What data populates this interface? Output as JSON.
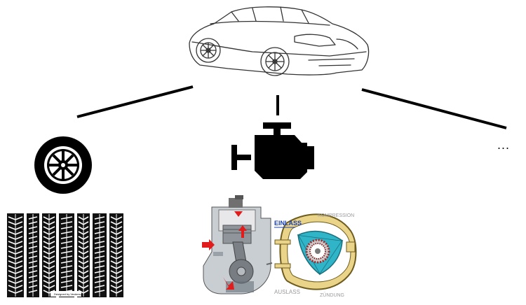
{
  "hierarchy": {
    "root": {
      "name": "car-sketch-icon"
    },
    "branches": [
      {
        "name": "tire-branch"
      },
      {
        "name": "engine-branch"
      },
      {
        "name": "more-branch"
      }
    ],
    "more_label": "...",
    "tread_credit": "Designed by Vecteezy",
    "rotary_labels": {
      "intake": "EINLASS",
      "compression": "KOMPRESSION",
      "exhaust": "AUSLASS",
      "ignition": "ZÜNDUNG",
      "rotor_marker": "A"
    }
  },
  "colors": {
    "line": "#000000",
    "icon": "#000000",
    "intake_label": "#1a3fb0",
    "gray_label": "#9a9a9a",
    "rotary_housing": "#ead48a",
    "rotary_rotor": "#2fb4c8",
    "piston_arrow": "#e01c1c"
  }
}
